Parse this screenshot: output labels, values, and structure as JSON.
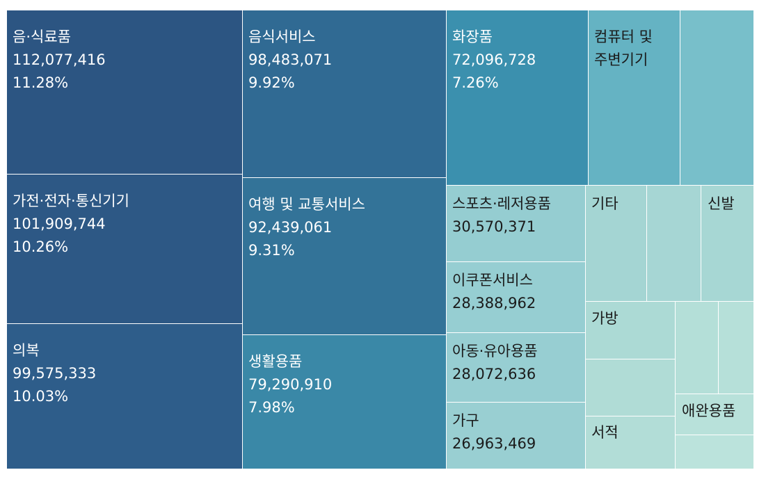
{
  "chart_data": {
    "type": "treemap",
    "tiles": [
      {
        "name": "음·식료품",
        "value": "112,077,416",
        "share": "11.28%",
        "color": "#2c5582"
      },
      {
        "name": "가전·전자·통신기기",
        "value": "101,909,744",
        "share": "10.26%",
        "color": "#2d5885"
      },
      {
        "name": "의복",
        "value": "99,575,333",
        "share": "10.03%",
        "color": "#2e5d8a"
      },
      {
        "name": "음식서비스",
        "value": "98,483,071",
        "share": "9.92%",
        "color": "#306a93"
      },
      {
        "name": "여행 및 교통서비스",
        "value": "92,439,061",
        "share": "9.31%",
        "color": "#337398"
      },
      {
        "name": "생활용품",
        "value": "79,290,910",
        "share": "7.98%",
        "color": "#3a88a7"
      },
      {
        "name": "화장품",
        "value": "72,096,728",
        "share": "7.26%",
        "color": "#3b90ae"
      },
      {
        "name": "컴퓨터 및 주변기기",
        "color": "#65b3c3"
      },
      {
        "name": "",
        "color": "#78bfca"
      },
      {
        "name": "스포츠·레저용품",
        "value": "30,570,371",
        "color": "#95cdd1"
      },
      {
        "name": "이쿠폰서비스",
        "value": "28,388,962",
        "color": "#96ced2"
      },
      {
        "name": "아동·유아용품",
        "value": "28,072,636",
        "color": "#97ced2"
      },
      {
        "name": "가구",
        "value": "26,963,469",
        "color": "#99cfd2"
      },
      {
        "name": "기타",
        "color": "#a4d5d3"
      },
      {
        "name": "",
        "color": "#a6d6d4"
      },
      {
        "name": "신발",
        "color": "#a7d7d4"
      },
      {
        "name": "가방",
        "color": "#acdad5"
      },
      {
        "name": "",
        "color": "#b0dcd6"
      },
      {
        "name": "서적",
        "color": "#b2ddd7"
      },
      {
        "name": "",
        "color": "#b4dfd8"
      },
      {
        "name": "",
        "color": "#b6e0d9"
      },
      {
        "name": "애완용품",
        "color": "#b8e1da"
      },
      {
        "name": "",
        "color": "#bbe3dc"
      }
    ]
  }
}
